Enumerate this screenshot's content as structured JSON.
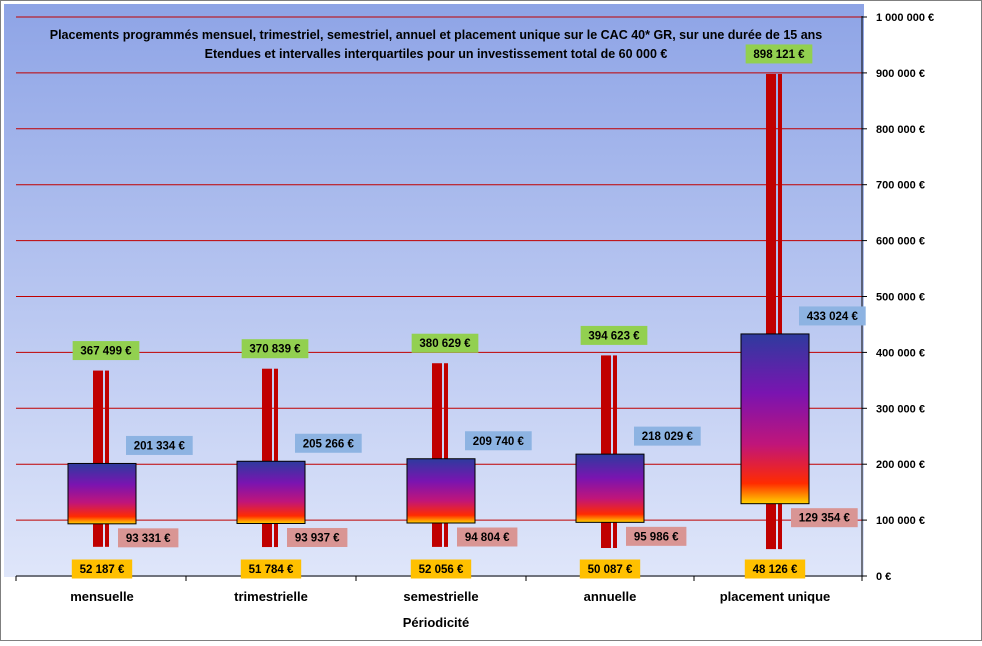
{
  "chart_data": {
    "type": "boxplot",
    "title_line1": "Placements programmés  mensuel, trimestriel, semestriel, annuel et placement unique sur le CAC 40* GR, sur une durée de 15 ans",
    "title_line2": "Etendues et intervalles interquartiles pour un investissement total de 60 000  €",
    "xlabel": "Périodicité",
    "ylabel": "",
    "ylim": [
      0,
      1000000
    ],
    "y_ticks": [
      0,
      100000,
      200000,
      300000,
      400000,
      500000,
      600000,
      700000,
      800000,
      900000,
      1000000
    ],
    "y_tick_labels": [
      "0 €",
      "100 000 €",
      "200 000 €",
      "300 000 €",
      "400 000 €",
      "500 000 €",
      "600 000 €",
      "700 000 €",
      "800 000 €",
      "900 000 €",
      "1 000 000 €"
    ],
    "categories": [
      "mensuelle",
      "trimestrielle",
      "semestrielle",
      "annuelle",
      "placement unique"
    ],
    "series": [
      {
        "name": "min",
        "values": [
          52187,
          51784,
          52056,
          50087,
          48126
        ],
        "labels": [
          "52 187 €",
          "51 784 €",
          "52 056 €",
          "50 087 €",
          "48 126 €"
        ],
        "color": "#ffc000"
      },
      {
        "name": "q1",
        "values": [
          93331,
          93937,
          94804,
          95986,
          129354
        ],
        "labels": [
          "93 331 €",
          "93 937 €",
          "94 804 €",
          "95 986 €",
          "129 354 €"
        ],
        "color": "#d99594"
      },
      {
        "name": "q3",
        "values": [
          201334,
          205266,
          209740,
          218029,
          433024
        ],
        "labels": [
          "201 334 €",
          "205 266 €",
          "209 740 €",
          "218 029 €",
          "433 024 €"
        ],
        "color": "#8db3e2"
      },
      {
        "name": "max",
        "values": [
          367499,
          370839,
          380629,
          394623,
          898121
        ],
        "labels": [
          "367 499 €",
          "370 839 €",
          "380 629 €",
          "394 623 €",
          "898 121 €"
        ],
        "color": "#92d050"
      }
    ],
    "gridline_color": "#c00000",
    "range_bar_color": "#c00000",
    "box_gradient": [
      "#2e3b9e",
      "#7a14b0",
      "#c0157a",
      "#ff2b00",
      "#ffd200"
    ],
    "background_gradient": [
      "#8ea4e6",
      "#dfe6fa"
    ]
  }
}
